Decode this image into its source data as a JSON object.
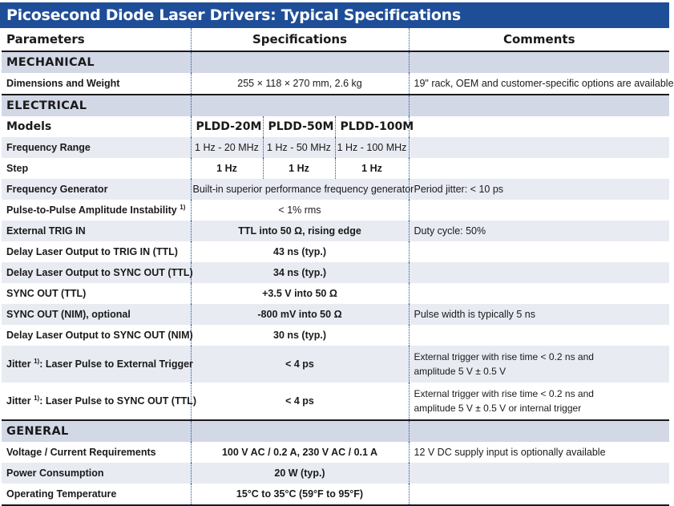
{
  "title": "Picosecond Diode Laser Drivers: Typical Specifications",
  "header": {
    "parameters": "Parameters",
    "specifications": "Specifications",
    "comments": "Comments"
  },
  "mechanical": {
    "label": "MECHANICAL",
    "dimensions": {
      "param": "Dimensions and Weight",
      "spec": "255 × 118 × 270 mm, 2.6 kg",
      "comment": "19\" rack, OEM and customer-specific options are available"
    }
  },
  "electrical": {
    "label": "ELECTRICAL",
    "models": {
      "param": "Models",
      "m1": "PLDD-20M",
      "m2": "PLDD-50M",
      "m3": "PLDD-100M"
    },
    "freq_range": {
      "param": "Frequency Range",
      "v1": "1 Hz - 20 MHz",
      "v2": "1 Hz - 50 MHz",
      "v3": "1 Hz - 100 MHz"
    },
    "step": {
      "param": "Step",
      "v1": "1 Hz",
      "v2": "1 Hz",
      "v3": "1 Hz"
    },
    "freq_gen": {
      "param": "Frequency Generator",
      "spec": "Built-in superior performance frequency generator",
      "comment": "Period jitter: < 10 ps"
    },
    "p2p": {
      "param": "Pulse-to-Pulse Amplitude Instability",
      "note": "1)",
      "spec": "< 1% rms"
    },
    "ext_trig": {
      "param": "External TRIG IN",
      "spec": "TTL into 50 Ω, rising edge",
      "comment": "Duty cycle: 50%"
    },
    "delay_trig": {
      "param": "Delay Laser Output to TRIG IN (TTL)",
      "spec": "43 ns (typ.)"
    },
    "delay_sync_ttl": {
      "param": "Delay Laser Output to SYNC OUT (TTL)",
      "spec": "34 ns (typ.)"
    },
    "sync_ttl": {
      "param": "SYNC OUT (TTL)",
      "spec": "+3.5 V into 50 Ω"
    },
    "sync_nim": {
      "param": "SYNC OUT (NIM), optional",
      "spec": "-800 mV into 50 Ω",
      "comment": "Pulse width is typically 5 ns"
    },
    "delay_sync_nim": {
      "param": "Delay Laser Output to SYNC OUT (NIM)",
      "spec": "30 ns (typ.)"
    },
    "jitter_ext": {
      "param_a": "Jitter",
      "note": "1)",
      "param_b": ": Laser Pulse to External Trigger",
      "spec": "< 4 ps",
      "comment_1": "External trigger with rise time < 0.2 ns and",
      "comment_2": "amplitude 5 V ± 0.5 V"
    },
    "jitter_sync": {
      "param_a": "Jitter",
      "note": "1)",
      "param_b": ": Laser Pulse to SYNC OUT (TTL)",
      "spec": "< 4 ps",
      "comment_1": "External trigger with rise time < 0.2 ns and",
      "comment_2": "amplitude 5 V ± 0.5 V or internal trigger"
    }
  },
  "general": {
    "label": "GENERAL",
    "voltage": {
      "param": "Voltage / Current Requirements",
      "spec": "100 V AC / 0.2 A, 230 V AC /  0.1 A",
      "comment": "12 V DC supply input is optionally available"
    },
    "power": {
      "param": "Power Consumption",
      "spec": "20 W (typ.)"
    },
    "temp": {
      "param": "Operating Temperature",
      "spec": "15°C to 35°C (59°F to 95°F)"
    }
  }
}
